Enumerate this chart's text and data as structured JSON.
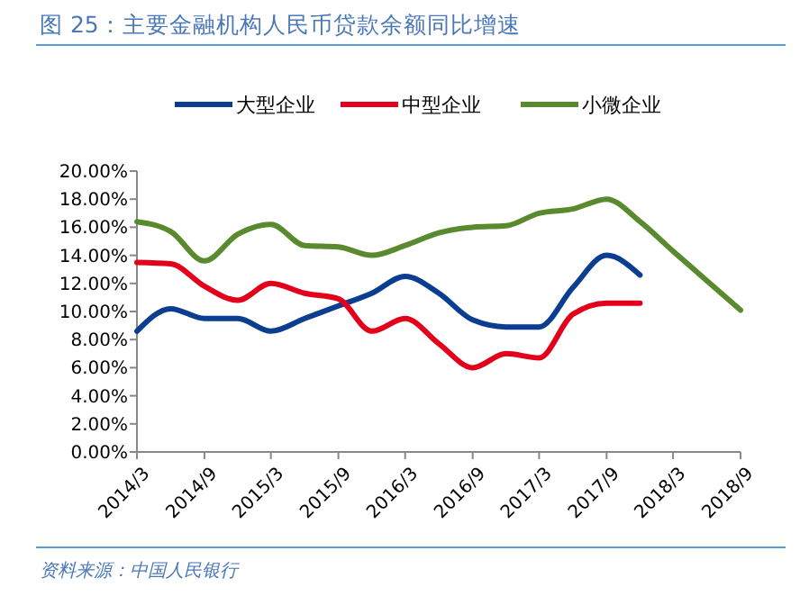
{
  "chart_data": {
    "type": "line",
    "title": "图 25：主要金融机构人民币贷款余额同比增速",
    "annotations": [
      "资料来源：中国人民银行"
    ],
    "x": [
      "2014-03",
      "2014-06",
      "2014-09",
      "2014-12",
      "2015-03",
      "2015-06",
      "2015-09",
      "2015-12",
      "2016-03",
      "2016-06",
      "2016-09",
      "2016-12",
      "2017-03",
      "2017-06",
      "2017-09",
      "2017-12",
      "2018-03",
      "2018-06",
      "2018-09"
    ],
    "series": [
      {
        "name": "大型企业",
        "color": "#0b3d91",
        "values": [
          8.6,
          10.2,
          9.5,
          9.5,
          8.6,
          9.5,
          10.4,
          11.3,
          12.5,
          11.3,
          9.4,
          8.9,
          8.9,
          11.7,
          14.0,
          12.6,
          null,
          null,
          null
        ]
      },
      {
        "name": "中型企业",
        "color": "#e3001b",
        "values": [
          13.5,
          13.4,
          11.8,
          10.8,
          12.0,
          11.3,
          10.9,
          8.6,
          9.5,
          7.7,
          6.0,
          7.0,
          6.7,
          9.8,
          10.6,
          10.6,
          null,
          null,
          null
        ]
      },
      {
        "name": "小微企业",
        "color": "#5a8a2e",
        "values": [
          16.4,
          15.7,
          13.6,
          15.5,
          16.2,
          14.7,
          14.6,
          14.0,
          14.7,
          15.6,
          16.0,
          16.1,
          17.0,
          17.3,
          18.0,
          16.4,
          14.3,
          12.2,
          10.1
        ]
      }
    ],
    "xlim": [
      "2014-03",
      "2018-09"
    ],
    "xticks": [
      {
        "value": "2014-03",
        "label": "2014/3"
      },
      {
        "value": "2014-09",
        "label": "2014/9"
      },
      {
        "value": "2015-03",
        "label": "2015/3"
      },
      {
        "value": "2015-09",
        "label": "2015/9"
      },
      {
        "value": "2016-03",
        "label": "2016/3"
      },
      {
        "value": "2016-09",
        "label": "2016/9"
      },
      {
        "value": "2017-03",
        "label": "2017/3"
      },
      {
        "value": "2017-09",
        "label": "2017/9"
      },
      {
        "value": "2018-03",
        "label": "2018/3"
      },
      {
        "value": "2018-09",
        "label": "2018/9"
      }
    ],
    "ylim": [
      0,
      20
    ],
    "yticks": [
      {
        "value": 0,
        "label": "0.00%"
      },
      {
        "value": 2,
        "label": "2.00%"
      },
      {
        "value": 4,
        "label": "4.00%"
      },
      {
        "value": 6,
        "label": "6.00%"
      },
      {
        "value": 8,
        "label": "8.00%"
      },
      {
        "value": 10,
        "label": "10.00%"
      },
      {
        "value": 12,
        "label": "12.00%"
      },
      {
        "value": 14,
        "label": "14.00%"
      },
      {
        "value": 16,
        "label": "16.00%"
      },
      {
        "value": 18,
        "label": "18.00%"
      },
      {
        "value": 20,
        "label": "20.00%"
      }
    ],
    "legend": "top",
    "grid": false
  }
}
